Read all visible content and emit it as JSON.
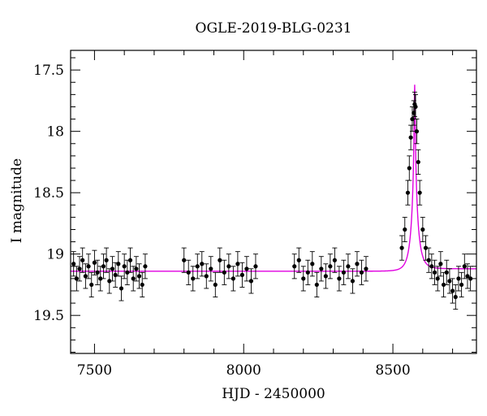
{
  "chart_data": {
    "type": "scatter",
    "title": "OGLE-2019-BLG-0231",
    "xlabel": "HJD - 2450000",
    "ylabel": "I magnitude",
    "xlim": [
      7420,
      8780
    ],
    "ylim": [
      19.81,
      17.34
    ],
    "y_inverted": true,
    "x_ticks": [
      7500,
      8000,
      8500
    ],
    "x_tick_labels": [
      "7500",
      "8000",
      "8500"
    ],
    "y_ticks": [
      17.5,
      18,
      18.5,
      19,
      19.5
    ],
    "y_tick_labels": [
      "17.5",
      "18",
      "18.5",
      "19",
      "19.5"
    ],
    "grid": false,
    "series": [
      {
        "kind": "points_with_errorbars",
        "color": "#000000",
        "description_of_shape": "baseline near 19.15 with scatter, peak near 17.75 at HJD 8575",
        "x": [
          7430,
          7440,
          7450,
          7460,
          7470,
          7480,
          7490,
          7500,
          7510,
          7520,
          7530,
          7540,
          7550,
          7560,
          7570,
          7580,
          7590,
          7600,
          7610,
          7620,
          7630,
          7640,
          7650,
          7660,
          7670,
          7800,
          7815,
          7830,
          7845,
          7860,
          7875,
          7890,
          7905,
          7920,
          7935,
          7950,
          7965,
          7980,
          7995,
          8010,
          8025,
          8040,
          8170,
          8185,
          8200,
          8215,
          8230,
          8245,
          8260,
          8275,
          8290,
          8305,
          8320,
          8335,
          8350,
          8365,
          8380,
          8395,
          8410,
          8530,
          8540,
          8550,
          8555,
          8560,
          8565,
          8570,
          8573,
          8576,
          8580,
          8585,
          8590,
          8600,
          8610,
          8620,
          8630,
          8640,
          8650,
          8660,
          8670,
          8680,
          8690,
          8700,
          8710,
          8720,
          8730,
          8740,
          8750,
          8760
        ],
        "y": [
          19.08,
          19.2,
          19.12,
          19.05,
          19.18,
          19.1,
          19.25,
          19.07,
          19.15,
          19.2,
          19.1,
          19.05,
          19.22,
          19.12,
          19.17,
          19.08,
          19.28,
          19.1,
          19.15,
          19.05,
          19.2,
          19.12,
          19.18,
          19.25,
          19.1,
          19.05,
          19.15,
          19.2,
          19.1,
          19.08,
          19.18,
          19.12,
          19.25,
          19.05,
          19.15,
          19.1,
          19.2,
          19.08,
          19.17,
          19.12,
          19.22,
          19.1,
          19.1,
          19.05,
          19.2,
          19.15,
          19.08,
          19.25,
          19.12,
          19.18,
          19.1,
          19.05,
          19.2,
          19.15,
          19.1,
          19.22,
          19.08,
          19.15,
          19.12,
          18.95,
          18.8,
          18.5,
          18.3,
          18.05,
          17.9,
          17.85,
          17.78,
          17.8,
          18.0,
          18.25,
          18.5,
          18.8,
          18.95,
          19.05,
          19.1,
          19.15,
          19.2,
          19.08,
          19.25,
          19.15,
          19.22,
          19.3,
          19.35,
          19.2,
          19.25,
          19.1,
          19.18,
          19.2
        ],
        "yerr": 0.1
      },
      {
        "kind": "model_curve",
        "color": "#e000e0",
        "baseline_mag": 19.14,
        "baseline_mag_right": 19.12,
        "peak_time": 8573,
        "peak_mag": 17.62,
        "x_range": [
          7420,
          8780
        ]
      }
    ]
  }
}
